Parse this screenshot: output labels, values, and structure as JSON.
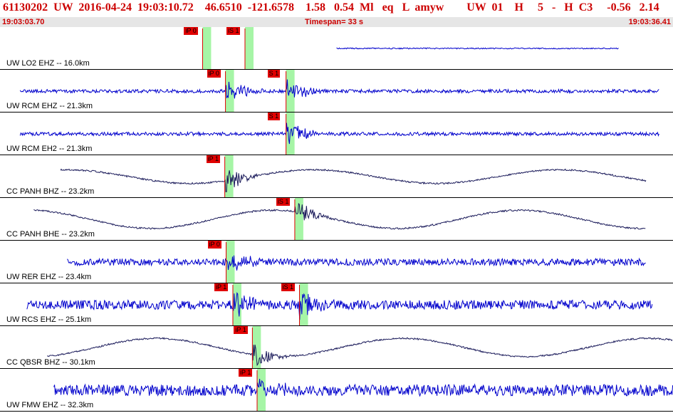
{
  "header": {
    "title": "61130202  UW  2016-04-24  19:03:10.72    46.6510  -121.6578    1.58   0.54  Ml   eq   L  amyw        UW  01    H     5   -   H  C3     -0.56   2.14",
    "start_time": "19:03:03.70",
    "timespan": "Timespan=  33 s",
    "end_time": "19:03:36.41"
  },
  "colors": {
    "title_text": "#cc0000",
    "trace_blue": "#0000cc",
    "trace_dark": "#1a1a5a",
    "pick_red": "#e00000",
    "pick_window": "#a6f5a6",
    "time_bar": "#e6e6e6"
  },
  "panels": [
    {
      "label": "UW LO2 EHZ --  16.0km",
      "color": "blue",
      "trace": [
        0.5,
        0.92
      ],
      "amp": 1,
      "picks": [
        {
          "label": "iP 0",
          "t": 0.301
        },
        {
          "label": "iS 1",
          "t": 0.364
        }
      ]
    },
    {
      "label": "UW RCM EHZ --  21.3km",
      "color": "blue",
      "trace": [
        0.03,
        0.98
      ],
      "amp": 3,
      "picks": [
        {
          "label": "iP 0",
          "t": 0.335
        },
        {
          "label": "S 1",
          "t": 0.425
        }
      ]
    },
    {
      "label": "UW RCM EH2 --  21.3km",
      "color": "blue",
      "trace": [
        0.03,
        0.98
      ],
      "amp": 3,
      "picks": [
        {
          "label": "S 1",
          "t": 0.425
        }
      ]
    },
    {
      "label": "CC PANH BHZ --  23.2km",
      "color": "dark",
      "trace": [
        0.09,
        0.96
      ],
      "amp": 3,
      "picks": [
        {
          "label": "iP 1",
          "t": 0.334
        }
      ]
    },
    {
      "label": "CC PANH BHE --  23.2km",
      "color": "dark",
      "trace": [
        0.05,
        0.96
      ],
      "amp": 4,
      "picks": [
        {
          "label": "iS 1",
          "t": 0.438
        }
      ]
    },
    {
      "label": "UW RER EHZ --  23.4km",
      "color": "blue",
      "trace": [
        0.1,
        0.96
      ],
      "amp": 6,
      "picks": [
        {
          "label": "iP 0",
          "t": 0.336
        }
      ]
    },
    {
      "label": "UW RCS EHZ --  25.1km",
      "color": "blue",
      "trace": [
        0.04,
        0.97
      ],
      "amp": 8,
      "picks": [
        {
          "label": "iP 1",
          "t": 0.346
        },
        {
          "label": "iS 1",
          "t": 0.445
        }
      ]
    },
    {
      "label": "CC QBSR BHZ --  30.1km",
      "color": "dark",
      "trace": [
        0.07,
        1.0
      ],
      "amp": 4,
      "picks": [
        {
          "label": "iP 1",
          "t": 0.375
        }
      ]
    },
    {
      "label": "UW FMW EHZ --  32.3km",
      "color": "blue",
      "trace": [
        0.08,
        1.0
      ],
      "amp": 10,
      "picks": [
        {
          "label": "iP 1",
          "t": 0.382
        }
      ]
    }
  ]
}
